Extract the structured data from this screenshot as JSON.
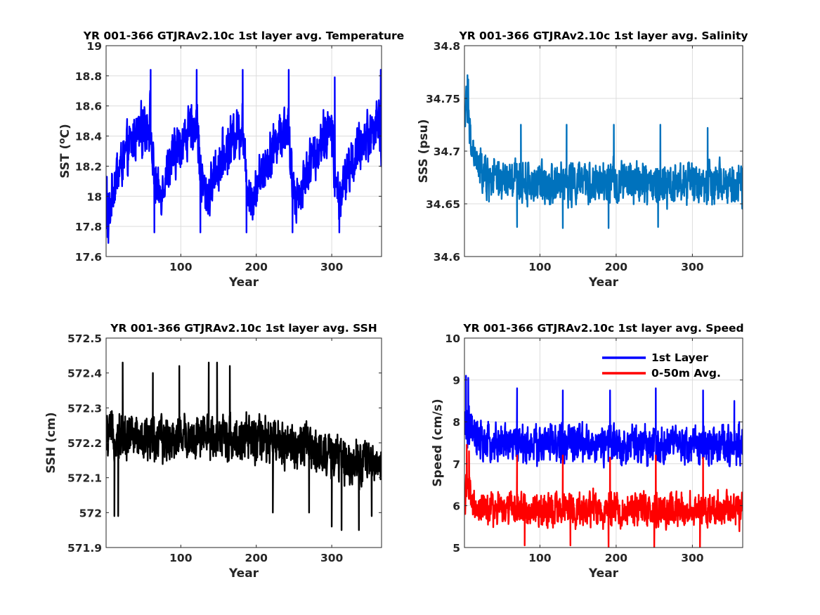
{
  "chart_data": [
    {
      "type": "line",
      "title": "YR 001-366 GTJRAv2.10c 1st layer avg. Temperature",
      "xlabel": "Year",
      "ylabel": "SST (",
      "ylabel_sup": "o",
      "ylabel_tail": "C)",
      "xlim": [
        1,
        366
      ],
      "ylim": [
        17.6,
        19
      ],
      "xticks": [
        100,
        200,
        300
      ],
      "yticks": [
        17.6,
        17.8,
        18,
        18.2,
        18.4,
        18.6,
        18.8,
        19
      ],
      "ytick_labels": [
        "17.6",
        "17.8",
        "18",
        "18.2",
        "18.4",
        "18.6",
        "18.8",
        "19"
      ],
      "grid": true,
      "series": [
        {
          "color": "#0000ff",
          "x": [
            1,
            3,
            6,
            10,
            15,
            20,
            25,
            30,
            35,
            40,
            45,
            50,
            55,
            60,
            62,
            65,
            70,
            75,
            80,
            85,
            90,
            95,
            100,
            105,
            110,
            115,
            120,
            122,
            125,
            130,
            135,
            140,
            145,
            150,
            155,
            160,
            165,
            170,
            175,
            180,
            182,
            185,
            190,
            195,
            200,
            205,
            210,
            215,
            220,
            225,
            230,
            235,
            240,
            242,
            245,
            250,
            255,
            260,
            265,
            270,
            275,
            280,
            285,
            290,
            295,
            300,
            303,
            306,
            310,
            315,
            320,
            325,
            330,
            335,
            340,
            345,
            350,
            355,
            360,
            363,
            366
          ],
          "center": [
            17.95,
            17.85,
            17.9,
            18.05,
            18.15,
            18.2,
            18.25,
            18.3,
            18.35,
            18.4,
            18.42,
            18.45,
            18.48,
            18.5,
            18.25,
            18.1,
            18.0,
            18.05,
            18.15,
            18.2,
            18.25,
            18.3,
            18.35,
            18.4,
            18.42,
            18.45,
            18.48,
            18.5,
            18.2,
            18.05,
            18.0,
            18.05,
            18.15,
            18.2,
            18.25,
            18.3,
            18.35,
            18.4,
            18.43,
            18.45,
            18.5,
            18.2,
            18.05,
            18.0,
            18.05,
            18.15,
            18.2,
            18.25,
            18.3,
            18.35,
            18.4,
            18.43,
            18.45,
            18.5,
            18.2,
            18.05,
            18.0,
            18.05,
            18.15,
            18.2,
            18.25,
            18.3,
            18.35,
            18.4,
            18.43,
            18.45,
            18.2,
            18.05,
            18.0,
            18.05,
            18.15,
            18.2,
            18.25,
            18.3,
            18.35,
            18.4,
            18.43,
            18.45,
            18.48,
            18.5,
            18.35
          ],
          "band": [
            0.22,
            0.22,
            0.2,
            0.2,
            0.2,
            0.2,
            0.2,
            0.2,
            0.2,
            0.2,
            0.2,
            0.2,
            0.2,
            0.22,
            0.22,
            0.2,
            0.18,
            0.18,
            0.18,
            0.2,
            0.2,
            0.2,
            0.2,
            0.2,
            0.2,
            0.2,
            0.2,
            0.22,
            0.22,
            0.2,
            0.18,
            0.18,
            0.18,
            0.2,
            0.2,
            0.2,
            0.2,
            0.2,
            0.2,
            0.2,
            0.22,
            0.22,
            0.2,
            0.18,
            0.18,
            0.18,
            0.2,
            0.2,
            0.2,
            0.2,
            0.2,
            0.2,
            0.2,
            0.22,
            0.22,
            0.2,
            0.18,
            0.18,
            0.18,
            0.2,
            0.2,
            0.2,
            0.2,
            0.2,
            0.2,
            0.2,
            0.22,
            0.2,
            0.18,
            0.18,
            0.18,
            0.2,
            0.2,
            0.2,
            0.2,
            0.2,
            0.2,
            0.2,
            0.2,
            0.22,
            0.22
          ],
          "peaks": [
            [
              2,
              18.13
            ],
            [
              4,
              17.69
            ],
            [
              60,
              18.84
            ],
            [
              121,
              18.84
            ],
            [
              182,
              18.84
            ],
            [
              243,
              18.84
            ],
            [
              304,
              18.79
            ],
            [
              365,
              18.84
            ],
            [
              65,
              17.76
            ],
            [
              126,
              17.76
            ],
            [
              187,
              17.76
            ],
            [
              248,
              17.76
            ],
            [
              310,
              17.76
            ]
          ]
        }
      ]
    },
    {
      "type": "line",
      "title": "YR 001-366 GTJRAv2.10c 1st layer avg. Salinity",
      "xlabel": "Year",
      "ylabel": "SSS (psu)",
      "xlim": [
        1,
        366
      ],
      "ylim": [
        34.6,
        34.8
      ],
      "xticks": [
        100,
        200,
        300
      ],
      "yticks": [
        34.6,
        34.65,
        34.7,
        34.75,
        34.8
      ],
      "ytick_labels": [
        "34.6",
        "34.65",
        "34.7",
        "34.75",
        "34.8"
      ],
      "grid": true,
      "series": [
        {
          "color": "#0072bd",
          "x": [
            1,
            3,
            5,
            8,
            12,
            16,
            20,
            25,
            30,
            40,
            50,
            60,
            70,
            80,
            90,
            100,
            120,
            140,
            160,
            180,
            200,
            220,
            240,
            260,
            280,
            300,
            320,
            340,
            366
          ],
          "center": [
            34.735,
            34.745,
            34.735,
            34.715,
            34.7,
            34.69,
            34.685,
            34.68,
            34.675,
            34.673,
            34.672,
            34.671,
            34.672,
            34.67,
            34.67,
            34.67,
            34.671,
            34.67,
            34.67,
            34.668,
            34.67,
            34.67,
            34.67,
            34.668,
            34.67,
            34.67,
            34.668,
            34.668,
            34.668
          ],
          "band": [
            0.02,
            0.02,
            0.02,
            0.022,
            0.022,
            0.022,
            0.024,
            0.024,
            0.024,
            0.024,
            0.024,
            0.024,
            0.024,
            0.024,
            0.024,
            0.024,
            0.024,
            0.024,
            0.024,
            0.024,
            0.024,
            0.024,
            0.024,
            0.024,
            0.024,
            0.024,
            0.024,
            0.024,
            0.024
          ],
          "peaks": [
            [
              5,
              34.772
            ],
            [
              6,
              34.768
            ],
            [
              75,
              34.725
            ],
            [
              135,
              34.725
            ],
            [
              197,
              34.725
            ],
            [
              258,
              34.725
            ],
            [
              320,
              34.722
            ],
            [
              70,
              34.628
            ],
            [
              190,
              34.627
            ],
            [
              255,
              34.628
            ],
            [
              130,
              34.627
            ]
          ]
        }
      ]
    },
    {
      "type": "line",
      "title": "YR 001-366 GTJRAv2.10c 1st layer avg. SSH",
      "xlabel": "Year",
      "ylabel": "SSH (cm)",
      "xlim": [
        1,
        366
      ],
      "ylim": [
        571.9,
        572.5
      ],
      "xticks": [
        100,
        200,
        300
      ],
      "yticks": [
        571.9,
        572,
        572.1,
        572.2,
        572.3,
        572.4,
        572.5
      ],
      "ytick_labels": [
        "571.9",
        "572",
        "572.1",
        "572.2",
        "572.3",
        "572.4",
        "572.5"
      ],
      "grid": false,
      "series": [
        {
          "color": "#000000",
          "x": [
            1,
            20,
            40,
            60,
            80,
            100,
            120,
            140,
            160,
            180,
            200,
            220,
            240,
            260,
            280,
            300,
            320,
            340,
            366
          ],
          "center": [
            572.22,
            572.22,
            572.22,
            572.21,
            572.21,
            572.22,
            572.21,
            572.22,
            572.22,
            572.21,
            572.21,
            572.2,
            572.2,
            572.19,
            572.18,
            572.16,
            572.15,
            572.15,
            572.14
          ],
          "band": [
            0.07,
            0.08,
            0.08,
            0.08,
            0.08,
            0.08,
            0.08,
            0.08,
            0.08,
            0.08,
            0.08,
            0.08,
            0.08,
            0.08,
            0.08,
            0.08,
            0.08,
            0.08,
            0.07
          ],
          "peaks": [
            [
              23,
              572.43
            ],
            [
              98,
              572.42
            ],
            [
              137,
              572.43
            ],
            [
              148,
              572.43
            ],
            [
              165,
              572.42
            ],
            [
              63,
              572.4
            ],
            [
              12,
              571.99
            ],
            [
              17,
              571.99
            ],
            [
              300,
              571.96
            ],
            [
              313,
              571.95
            ],
            [
              336,
              571.95
            ],
            [
              353,
              571.99
            ],
            [
              222,
              572.0
            ],
            [
              270,
              572.0
            ]
          ]
        }
      ]
    },
    {
      "type": "line",
      "title": "YR 001-366 GTJRAv2.10c 1st layer avg. Speed",
      "xlabel": "Year",
      "ylabel": "Speed (cm/s)",
      "xlim": [
        1,
        366
      ],
      "ylim": [
        5,
        10
      ],
      "xticks": [
        100,
        200,
        300
      ],
      "yticks": [
        5,
        6,
        7,
        8,
        9,
        10
      ],
      "ytick_labels": [
        "5",
        "6",
        "7",
        "8",
        "9",
        "10"
      ],
      "grid": true,
      "legend": "top-right",
      "series": [
        {
          "name": "1st Layer",
          "color": "#0000ff",
          "x": [
            1,
            3,
            6,
            10,
            20,
            40,
            60,
            80,
            100,
            120,
            140,
            160,
            180,
            200,
            220,
            240,
            260,
            280,
            300,
            320,
            340,
            366
          ],
          "center": [
            7.7,
            8.0,
            7.9,
            7.7,
            7.5,
            7.45,
            7.5,
            7.45,
            7.45,
            7.45,
            7.5,
            7.45,
            7.45,
            7.45,
            7.45,
            7.45,
            7.45,
            7.45,
            7.45,
            7.45,
            7.45,
            7.45
          ],
          "band": [
            0.6,
            0.7,
            0.65,
            0.6,
            0.55,
            0.55,
            0.55,
            0.55,
            0.55,
            0.55,
            0.55,
            0.55,
            0.55,
            0.55,
            0.55,
            0.55,
            0.55,
            0.55,
            0.55,
            0.55,
            0.55,
            0.55
          ],
          "peaks": [
            [
              3,
              9.1
            ],
            [
              6,
              9.05
            ],
            [
              70,
              8.8
            ],
            [
              130,
              8.75
            ],
            [
              192,
              8.75
            ],
            [
              252,
              8.8
            ],
            [
              314,
              8.75
            ],
            [
              355,
              8.5
            ]
          ]
        },
        {
          "name": "0-50m Avg.",
          "color": "#ff0000",
          "x": [
            1,
            3,
            6,
            10,
            20,
            40,
            60,
            80,
            100,
            120,
            140,
            160,
            180,
            200,
            220,
            240,
            260,
            280,
            300,
            320,
            340,
            366
          ],
          "center": [
            6.1,
            6.5,
            6.4,
            6.1,
            5.95,
            5.9,
            5.95,
            5.9,
            5.9,
            5.9,
            5.95,
            5.9,
            5.9,
            5.9,
            5.9,
            5.9,
            5.9,
            5.9,
            5.9,
            5.9,
            5.9,
            5.9
          ],
          "band": [
            0.5,
            0.6,
            0.55,
            0.5,
            0.48,
            0.48,
            0.48,
            0.48,
            0.48,
            0.48,
            0.48,
            0.48,
            0.48,
            0.48,
            0.48,
            0.48,
            0.48,
            0.48,
            0.48,
            0.48,
            0.48,
            0.48
          ],
          "peaks": [
            [
              4,
              7.45
            ],
            [
              7,
              7.3
            ],
            [
              70,
              7.2
            ],
            [
              130,
              7.2
            ],
            [
              192,
              7.15
            ],
            [
              252,
              7.2
            ],
            [
              314,
              7.15
            ],
            [
              80,
              5.05
            ],
            [
              190,
              5.0
            ],
            [
              250,
              5.0
            ],
            [
              310,
              5.0
            ],
            [
              140,
              5.05
            ]
          ]
        }
      ]
    }
  ]
}
